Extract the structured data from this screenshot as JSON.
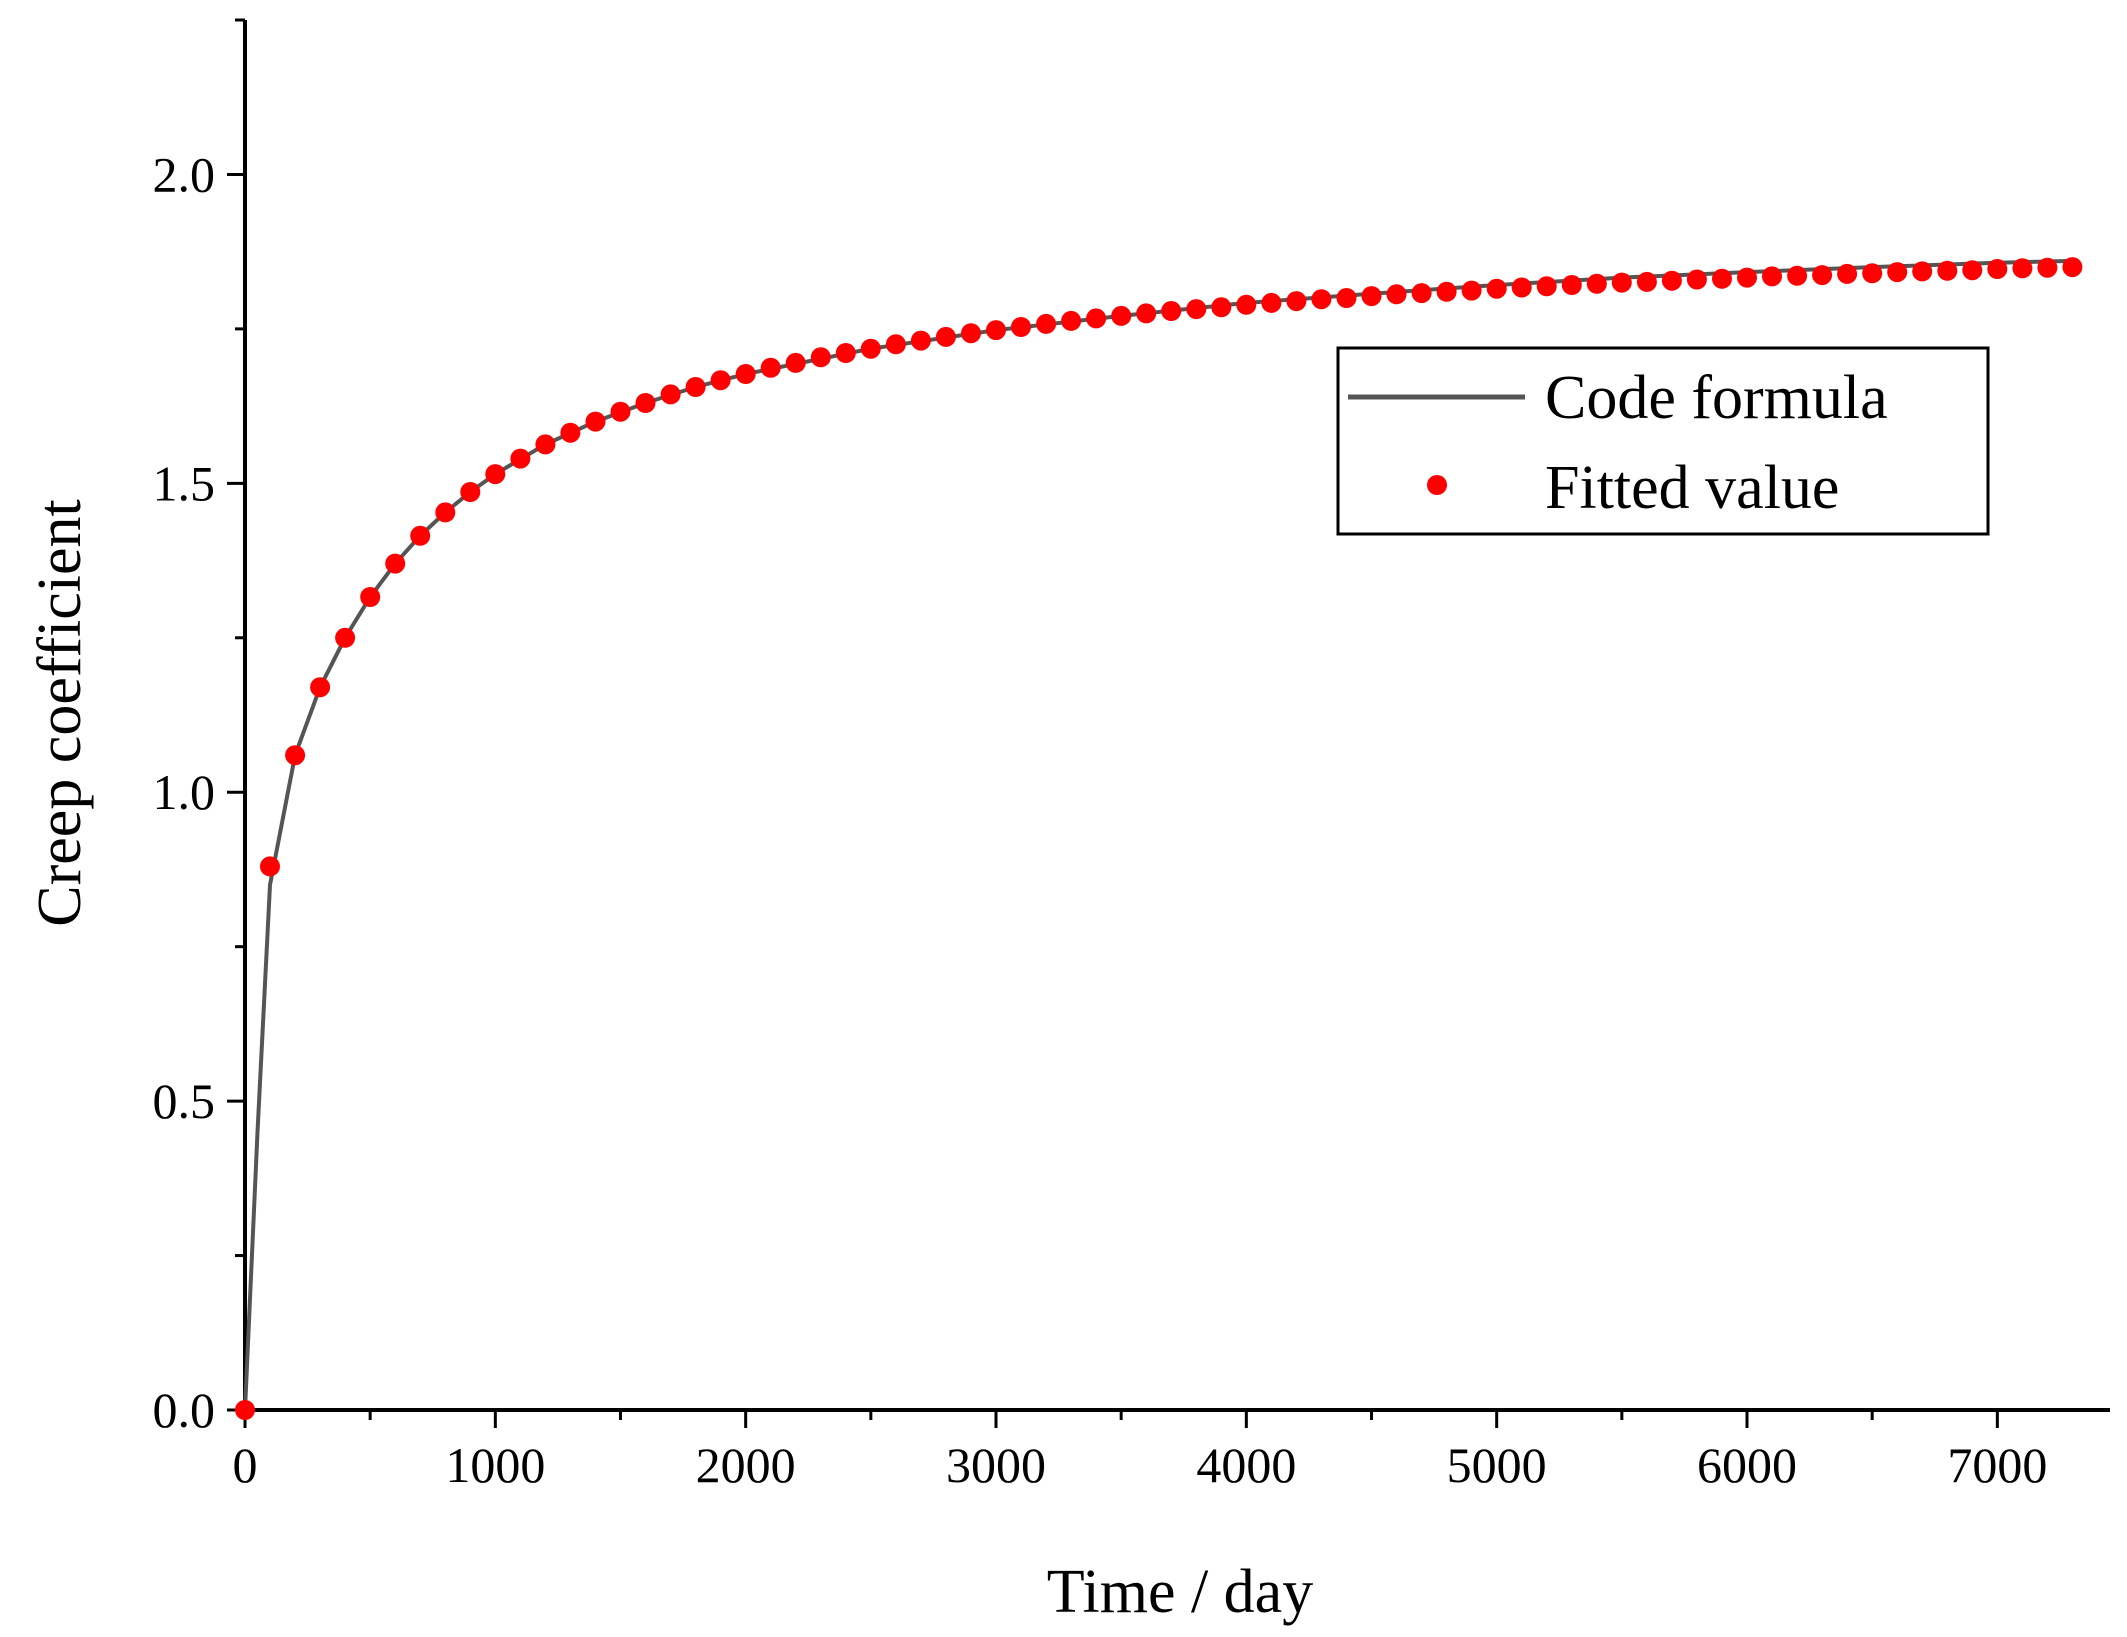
{
  "chart_data": {
    "type": "line",
    "title": "",
    "xlabel": "Time / day",
    "ylabel": "Creep coefficient",
    "xlim": [
      0,
      7450
    ],
    "ylim": [
      0,
      2.25
    ],
    "xticks": [
      0,
      1000,
      2000,
      3000,
      4000,
      5000,
      6000,
      7000
    ],
    "xtick_labels": [
      "0",
      "1000",
      "2000",
      "3000",
      "4000",
      "5000",
      "6000",
      "7000"
    ],
    "yticks": [
      0.0,
      0.5,
      1.0,
      1.5,
      2.0
    ],
    "ytick_labels": [
      "0.0",
      "0.5",
      "1.0",
      "1.5",
      "2.0"
    ],
    "legend_position": "upper-right",
    "grid": false,
    "colors": {
      "line": "#555555",
      "marker": "#ff0000",
      "axis": "#000000"
    },
    "series": [
      {
        "name": "Code formula",
        "style": "line",
        "x": [
          0,
          50,
          100,
          200,
          300,
          400,
          500,
          600,
          700,
          800,
          900,
          1000,
          1200,
          1400,
          1600,
          1800,
          2000,
          2500,
          3000,
          3500,
          4000,
          4500,
          5000,
          5500,
          6000,
          6500,
          7000,
          7300
        ],
        "y": [
          0,
          0.45,
          0.85,
          1.06,
          1.17,
          1.25,
          1.316,
          1.37,
          1.415,
          1.453,
          1.486,
          1.515,
          1.563,
          1.6,
          1.63,
          1.656,
          1.677,
          1.718,
          1.748,
          1.771,
          1.792,
          1.807,
          1.821,
          1.833,
          1.842,
          1.85,
          1.857,
          1.86
        ]
      },
      {
        "name": "Fitted value",
        "style": "markers",
        "x": [
          0,
          100,
          200,
          300,
          400,
          500,
          600,
          700,
          800,
          900,
          1000,
          1100,
          1200,
          1300,
          1400,
          1500,
          1600,
          1700,
          1800,
          1900,
          2000,
          2100,
          2200,
          2300,
          2400,
          2500,
          2600,
          2700,
          2800,
          2900,
          3000,
          3100,
          3200,
          3300,
          3400,
          3500,
          3600,
          3700,
          3800,
          3900,
          4000,
          4100,
          4200,
          4300,
          4400,
          4500,
          4600,
          4700,
          4800,
          4900,
          5000,
          5100,
          5200,
          5300,
          5400,
          5500,
          5600,
          5700,
          5800,
          5900,
          6000,
          6100,
          6200,
          6300,
          6400,
          6500,
          6600,
          6700,
          6800,
          6900,
          7000,
          7100,
          7200,
          7300
        ],
        "y": [
          0.0,
          0.88,
          1.06,
          1.17,
          1.25,
          1.316,
          1.37,
          1.415,
          1.453,
          1.486,
          1.515,
          1.54,
          1.563,
          1.582,
          1.6,
          1.616,
          1.63,
          1.644,
          1.656,
          1.667,
          1.677,
          1.687,
          1.695,
          1.704,
          1.711,
          1.718,
          1.725,
          1.731,
          1.737,
          1.743,
          1.748,
          1.753,
          1.758,
          1.763,
          1.767,
          1.771,
          1.775,
          1.779,
          1.782,
          1.785,
          1.789,
          1.792,
          1.795,
          1.798,
          1.8,
          1.803,
          1.806,
          1.808,
          1.81,
          1.812,
          1.815,
          1.817,
          1.819,
          1.821,
          1.823,
          1.825,
          1.826,
          1.828,
          1.83,
          1.831,
          1.833,
          1.835,
          1.836,
          1.837,
          1.839,
          1.84,
          1.842,
          1.843,
          1.844,
          1.845,
          1.847,
          1.848,
          1.849,
          1.85
        ]
      }
    ]
  }
}
